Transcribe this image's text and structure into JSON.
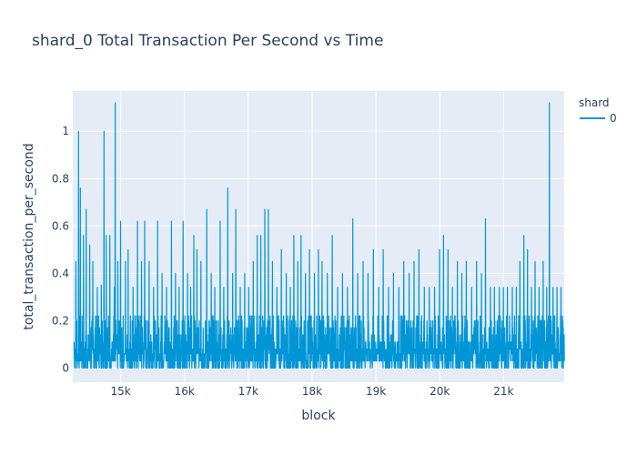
{
  "chart_data": {
    "type": "line",
    "title": "shard_0 Total Transaction Per Second vs Time",
    "xlabel": "block",
    "ylabel": "total_transaction_per_second",
    "xlim": [
      14250,
      21950
    ],
    "ylim": [
      -0.06,
      1.17
    ],
    "x_ticks": [
      15000,
      16000,
      17000,
      18000,
      19000,
      20000,
      21000
    ],
    "x_tick_labels": [
      "15k",
      "16k",
      "17k",
      "18k",
      "19k",
      "20k",
      "21k"
    ],
    "y_ticks": [
      0,
      0.2,
      0.4,
      0.6,
      0.8,
      1
    ],
    "y_tick_labels": [
      "0",
      "0.2",
      "0.4",
      "0.6",
      "0.8",
      "1"
    ],
    "grid": true,
    "legend": {
      "title": "shard",
      "position": "top-right"
    },
    "colors": {
      "series": "#0096d6",
      "plot_bg": "#e5ecf6",
      "grid": "#ffffff"
    },
    "series": [
      {
        "name": "0",
        "x_start": 14270,
        "x_end": 21950,
        "baseline_range": [
          0,
          0.22
        ],
        "peaks": [
          [
            14300,
            0.45
          ],
          [
            14340,
            1.0
          ],
          [
            14370,
            0.76
          ],
          [
            14420,
            0.56
          ],
          [
            14460,
            0.67
          ],
          [
            14520,
            0.52
          ],
          [
            14570,
            0.45
          ],
          [
            14640,
            0.34
          ],
          [
            14700,
            0.35
          ],
          [
            14740,
            1.0
          ],
          [
            14780,
            0.56
          ],
          [
            14830,
            0.56
          ],
          [
            14900,
            0.34
          ],
          [
            14920,
            1.12
          ],
          [
            14960,
            0.45
          ],
          [
            15000,
            0.62
          ],
          [
            15080,
            0.45
          ],
          [
            15120,
            0.5
          ],
          [
            15200,
            0.34
          ],
          [
            15270,
            0.62
          ],
          [
            15330,
            0.45
          ],
          [
            15380,
            0.62
          ],
          [
            15450,
            0.45
          ],
          [
            15520,
            0.34
          ],
          [
            15580,
            0.62
          ],
          [
            15650,
            0.4
          ],
          [
            15720,
            0.34
          ],
          [
            15800,
            0.62
          ],
          [
            15860,
            0.4
          ],
          [
            15920,
            0.34
          ],
          [
            15980,
            0.62
          ],
          [
            16050,
            0.4
          ],
          [
            16100,
            0.34
          ],
          [
            16150,
            0.56
          ],
          [
            16200,
            0.5
          ],
          [
            16260,
            0.45
          ],
          [
            16350,
            0.67
          ],
          [
            16420,
            0.4
          ],
          [
            16480,
            0.34
          ],
          [
            16560,
            0.62
          ],
          [
            16620,
            0.34
          ],
          [
            16680,
            0.76
          ],
          [
            16760,
            0.4
          ],
          [
            16810,
            0.67
          ],
          [
            16880,
            0.34
          ],
          [
            16950,
            0.4
          ],
          [
            17010,
            0.34
          ],
          [
            17080,
            0.45
          ],
          [
            17140,
            0.56
          ],
          [
            17200,
            0.56
          ],
          [
            17260,
            0.67
          ],
          [
            17320,
            0.67
          ],
          [
            17380,
            0.45
          ],
          [
            17450,
            0.34
          ],
          [
            17520,
            0.5
          ],
          [
            17600,
            0.4
          ],
          [
            17660,
            0.34
          ],
          [
            17720,
            0.56
          ],
          [
            17780,
            0.45
          ],
          [
            17830,
            0.56
          ],
          [
            17900,
            0.4
          ],
          [
            17960,
            0.5
          ],
          [
            18040,
            0.4
          ],
          [
            18100,
            0.5
          ],
          [
            18160,
            0.45
          ],
          [
            18240,
            0.4
          ],
          [
            18320,
            0.56
          ],
          [
            18400,
            0.34
          ],
          [
            18480,
            0.4
          ],
          [
            18560,
            0.34
          ],
          [
            18640,
            0.63
          ],
          [
            18720,
            0.4
          ],
          [
            18800,
            0.45
          ],
          [
            18880,
            0.4
          ],
          [
            18960,
            0.5
          ],
          [
            19050,
            0.34
          ],
          [
            19120,
            0.5
          ],
          [
            19200,
            0.34
          ],
          [
            19280,
            0.4
          ],
          [
            19360,
            0.34
          ],
          [
            19440,
            0.45
          ],
          [
            19520,
            0.4
          ],
          [
            19600,
            0.45
          ],
          [
            19680,
            0.5
          ],
          [
            19760,
            0.34
          ],
          [
            19840,
            0.34
          ],
          [
            19920,
            0.34
          ],
          [
            20000,
            0.5
          ],
          [
            20060,
            0.56
          ],
          [
            20130,
            0.5
          ],
          [
            20200,
            0.34
          ],
          [
            20280,
            0.45
          ],
          [
            20350,
            0.4
          ],
          [
            20420,
            0.45
          ],
          [
            20500,
            0.34
          ],
          [
            20580,
            0.45
          ],
          [
            20660,
            0.4
          ],
          [
            20720,
            0.63
          ],
          [
            20800,
            0.34
          ],
          [
            20860,
            0.34
          ],
          [
            20940,
            0.34
          ],
          [
            21000,
            0.34
          ],
          [
            21060,
            0.34
          ],
          [
            21140,
            0.34
          ],
          [
            21200,
            0.34
          ],
          [
            21260,
            0.45
          ],
          [
            21320,
            0.56
          ],
          [
            21380,
            0.5
          ],
          [
            21440,
            0.34
          ],
          [
            21500,
            0.45
          ],
          [
            21560,
            0.34
          ],
          [
            21620,
            0.45
          ],
          [
            21680,
            0.34
          ],
          [
            21720,
            1.12
          ],
          [
            21780,
            0.34
          ],
          [
            21840,
            0.34
          ],
          [
            21900,
            0.34
          ]
        ]
      }
    ]
  }
}
